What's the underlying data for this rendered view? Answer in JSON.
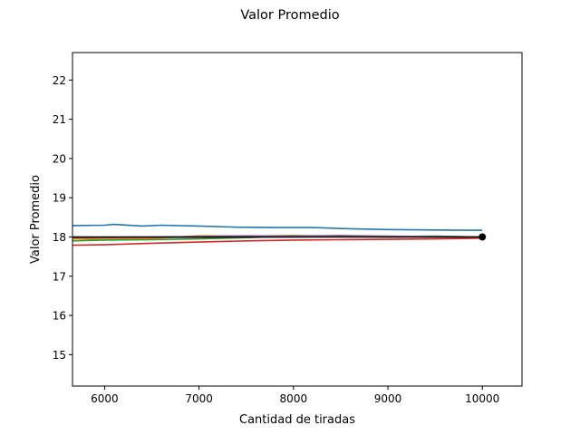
{
  "chart_data": {
    "type": "line",
    "title": "Valor Promedio",
    "xlabel": "Cantidad de tiradas",
    "ylabel": "Valor Promedio",
    "xlim": [
      5660,
      10420
    ],
    "ylim": [
      14.2,
      22.7
    ],
    "xticks": [
      6000,
      7000,
      8000,
      9000,
      10000
    ],
    "yticks": [
      15,
      16,
      17,
      18,
      19,
      20,
      21,
      22
    ],
    "grid": false,
    "legend": "none",
    "series": [
      {
        "color": "#1f77b4",
        "x": [
          5660,
          6000,
          6100,
          6400,
          6600,
          7000,
          7400,
          7800,
          8200,
          8600,
          9000,
          9400,
          9800,
          10000
        ],
        "values": [
          18.29,
          18.3,
          18.32,
          18.28,
          18.3,
          18.28,
          18.25,
          18.24,
          18.24,
          18.21,
          18.19,
          18.18,
          18.17,
          18.17
        ]
      },
      {
        "color": "#ff7f0e",
        "x": [
          5660,
          6000,
          6500,
          7000,
          7500,
          8000,
          8500,
          9000,
          9500,
          10000
        ],
        "values": [
          17.95,
          17.94,
          17.96,
          18.03,
          18.02,
          18.04,
          18.02,
          18.0,
          18.01,
          18.0
        ]
      },
      {
        "color": "#2ca02c",
        "x": [
          5660,
          6000,
          6500,
          7000,
          7500,
          8000,
          8500,
          9000,
          9500,
          10000
        ],
        "values": [
          17.9,
          17.92,
          17.93,
          17.95,
          17.98,
          18.03,
          18.02,
          18.01,
          18.02,
          18.0
        ]
      },
      {
        "color": "#d62728",
        "x": [
          5660,
          6000,
          6500,
          7000,
          7500,
          8000,
          8500,
          9000,
          9500,
          10000
        ],
        "values": [
          17.79,
          17.8,
          17.84,
          17.87,
          17.9,
          17.92,
          17.93,
          17.94,
          17.95,
          17.97
        ]
      },
      {
        "color": "#9467bd",
        "x": [
          5660,
          6000,
          6500,
          7000,
          7500,
          8000,
          8500,
          9000,
          9500,
          10000
        ],
        "values": [
          18.0,
          17.99,
          18.0,
          18.01,
          18.03,
          18.02,
          18.04,
          18.02,
          18.01,
          18.0
        ]
      },
      {
        "color": "#8c564b",
        "x": [
          5660,
          6000,
          6500,
          7000,
          7500,
          8000,
          8500,
          9000,
          9500,
          10000
        ],
        "values": [
          17.98,
          17.98,
          17.99,
          17.99,
          18.0,
          18.0,
          18.01,
          18.0,
          18.0,
          18.0
        ]
      },
      {
        "color": "#000000",
        "x": [
          5660,
          10000
        ],
        "values": [
          18.0,
          18.0
        ]
      }
    ],
    "marker": {
      "x": 10000,
      "y": 18.0,
      "color": "#000000"
    }
  }
}
